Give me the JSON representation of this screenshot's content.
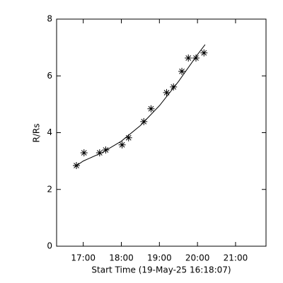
{
  "chart_data": {
    "type": "scatter",
    "xlabel": "Start Time (19-May-25 16:18:07)",
    "ylabel": "R/Rs",
    "xlim": [
      16.3,
      21.8
    ],
    "xticks": [
      {
        "value": 17,
        "label": "17:00"
      },
      {
        "value": 18,
        "label": "18:00"
      },
      {
        "value": 19,
        "label": "19:00"
      },
      {
        "value": 20,
        "label": "20:00"
      },
      {
        "value": 21,
        "label": "21:00"
      }
    ],
    "ylim": [
      0,
      8
    ],
    "yticks": [
      0,
      2,
      4,
      6,
      8
    ],
    "series": [
      {
        "mode": "markers",
        "marker": "asterisk",
        "color": "#000000",
        "x": [
          16.82,
          17.02,
          17.43,
          17.59,
          18.02,
          18.19,
          18.59,
          18.78,
          19.19,
          19.37,
          19.59,
          19.76,
          19.96,
          20.17
        ],
        "values": [
          2.84,
          3.29,
          3.29,
          3.39,
          3.57,
          3.82,
          4.39,
          4.84,
          5.41,
          5.61,
          6.16,
          6.63,
          6.63,
          6.81
        ]
      },
      {
        "mode": "line",
        "color": "#000000",
        "x": [
          16.78,
          17,
          17.5,
          18,
          18.5,
          19,
          19.5,
          20,
          20.2
        ],
        "values": [
          2.8,
          3.0,
          3.3,
          3.7,
          4.25,
          4.95,
          5.8,
          6.75,
          7.1
        ]
      }
    ]
  }
}
